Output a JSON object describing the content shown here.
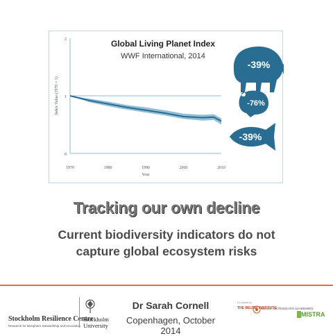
{
  "chart_data": {
    "type": "line",
    "title": "Global Living Planet Index",
    "subtitle": "WWF International, 2014",
    "xlabel": "Year",
    "ylabel": "Index Value (1970 = 1)",
    "xlim": [
      1970,
      2010
    ],
    "ylim": [
      0,
      2
    ],
    "x_ticks": [
      "1970",
      "1980",
      "1990",
      "2000",
      "2010"
    ],
    "y_ticks": [
      "0",
      "1",
      "2"
    ],
    "x": [
      1970,
      1975,
      1980,
      1985,
      1990,
      1995,
      2000,
      2005,
      2008,
      2010
    ],
    "series": [
      {
        "values": [
          1.0,
          0.92,
          0.86,
          0.8,
          0.75,
          0.7,
          0.64,
          0.62,
          0.63,
          0.56
        ],
        "upper": [
          1.0,
          0.95,
          0.9,
          0.84,
          0.8,
          0.75,
          0.69,
          0.67,
          0.68,
          0.61
        ],
        "lower": [
          1.0,
          0.89,
          0.82,
          0.76,
          0.71,
          0.66,
          0.6,
          0.57,
          0.58,
          0.5
        ]
      }
    ],
    "baseline": 1,
    "colors": {
      "line": "#2a6d93",
      "band": "#6fa8c8",
      "baseline": "#8fbcd4",
      "axis": "#8fbcd4"
    },
    "annotations": [
      {
        "icon": "elephant-icon",
        "text": "-39%"
      },
      {
        "icon": "frog-icon",
        "text": "-76%"
      },
      {
        "icon": "fish-icon",
        "text": "-39%"
      }
    ]
  },
  "slide": {
    "headline": "Tracking our own decline",
    "subtitle_line1": "Current biodiversity indicators do not",
    "subtitle_line2": "capture global ecosystem risks"
  },
  "footer": {
    "org_name": "Stockholm Resilience Centre",
    "org_tagline": "Research for Biosphere Stewardship and Innovation",
    "university_line1": "Stockholm",
    "university_line2": "University",
    "author": "Dr Sarah Cornell",
    "event": "Copenhagen, October 2014",
    "partner1": "THE BEIJER INSTITUTE",
    "partner2": "KUNGL. VETENSKAPS AKADEMIEN",
    "partner3": "MISTRA",
    "partner_tag": "Co-funded by"
  },
  "colors": {
    "accent": "#e86a3a",
    "icon_blue": "#2a6d93"
  }
}
